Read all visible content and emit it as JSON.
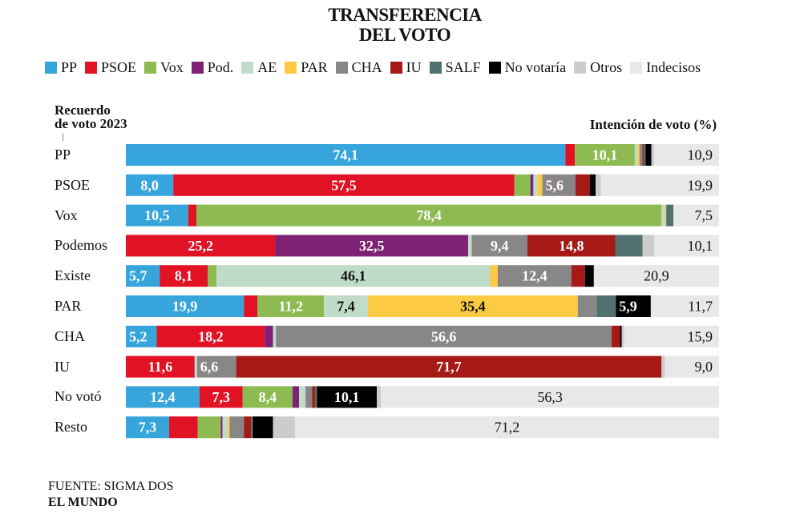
{
  "title_line1": "TRANSFERENCIA",
  "title_line2": "DEL VOTO",
  "source": "FUENTE: SIGMA DOS",
  "publisher": "EL MUNDO",
  "chart_data": {
    "type": "bar",
    "orientation": "horizontal",
    "stacked": true,
    "ylabel_line1": "Recuerdo",
    "ylabel_line2": "de voto 2023",
    "xlabel": "Intención  de voto (%)",
    "xlim": [
      0,
      100
    ],
    "grid": false,
    "legend_position": "top",
    "series_names": [
      "PP",
      "PSOE",
      "Vox",
      "Pod.",
      "AE",
      "PAR",
      "CHA",
      "IU",
      "SALF",
      "No votaría",
      "Otros",
      "Indecisos"
    ],
    "colors": [
      "#36a5dc",
      "#e01224",
      "#8dbb52",
      "#7e2276",
      "#c0dcc8",
      "#fdca43",
      "#888687",
      "#a51916",
      "#527272",
      "#000000",
      "#cccccc",
      "#e8e8e8"
    ],
    "label_text_colors": [
      "#fff",
      "#fff",
      "#fff",
      "#fff",
      "#111",
      "#111",
      "#fff",
      "#fff",
      "#fff",
      "#fff",
      "#111",
      "#111"
    ],
    "categories": [
      "PP",
      "PSOE",
      "Vox",
      "Podemos",
      "Existe",
      "PAR",
      "CHA",
      "IU",
      "No votó",
      "Resto"
    ],
    "rows": [
      [
        74.1,
        1.6,
        10.1,
        0,
        0.5,
        0.3,
        0.5,
        0.2,
        0.3,
        1.0,
        0.5,
        10.9
      ],
      [
        8.0,
        57.5,
        2.7,
        0.5,
        0.7,
        0.8,
        5.6,
        2.4,
        0,
        1.0,
        0.9,
        19.9
      ],
      [
        10.5,
        1.4,
        78.4,
        0,
        0.6,
        0.2,
        0,
        0,
        1.2,
        0,
        0,
        7.5
      ],
      [
        0,
        25.2,
        0,
        32.5,
        0.6,
        0,
        9.4,
        14.8,
        4.6,
        0,
        2.0,
        10.1
      ],
      [
        5.7,
        8.1,
        1.5,
        0,
        46.1,
        1.3,
        12.4,
        2.3,
        0,
        1.5,
        0,
        20.9
      ],
      [
        19.9,
        2.3,
        11.2,
        0,
        7.4,
        35.4,
        3.2,
        0,
        3.2,
        5.9,
        0,
        11.7
      ],
      [
        5.2,
        18.2,
        0,
        1.4,
        0.5,
        0,
        56.6,
        1.4,
        0,
        0.3,
        0.4,
        15.9
      ],
      [
        0,
        11.6,
        0,
        0,
        0.4,
        0,
        6.6,
        71.7,
        0,
        0,
        0.6,
        9.0
      ],
      [
        12.4,
        7.3,
        8.4,
        1.1,
        1.1,
        0,
        1.1,
        0.5,
        0.3,
        10.1,
        0.7,
        56.3
      ],
      [
        7.3,
        4.8,
        3.9,
        0.3,
        0.9,
        0.3,
        2.4,
        1.2,
        0.3,
        3.4,
        3.7,
        71.2
      ]
    ]
  }
}
